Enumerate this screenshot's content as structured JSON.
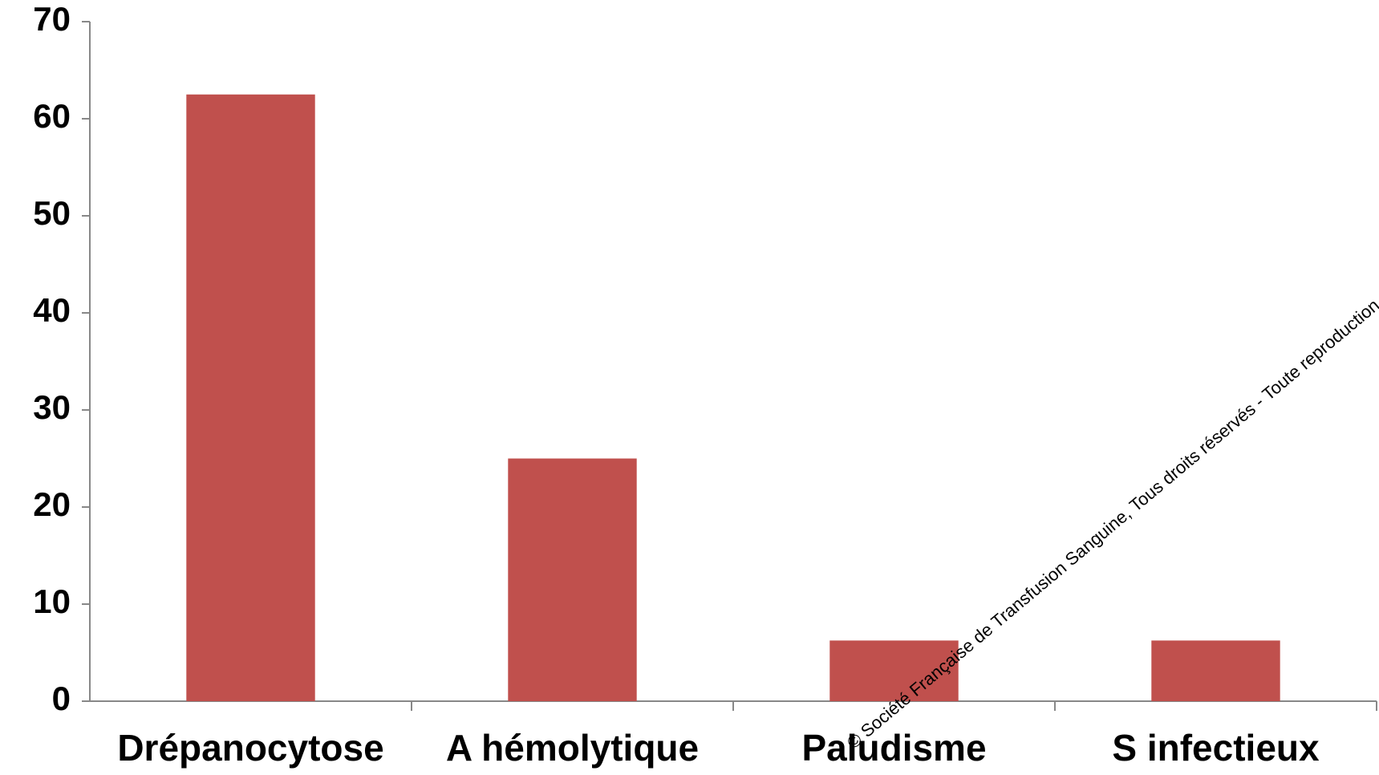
{
  "chart_data": {
    "type": "bar",
    "categories": [
      "Drépanocytose",
      "A hémolytique",
      "Paludisme",
      "S infectieux"
    ],
    "values": [
      62.5,
      25,
      6.25,
      6.25
    ],
    "color": "#c0504d",
    "ylim": [
      0,
      70
    ],
    "yticks": [
      0,
      10,
      20,
      30,
      40,
      50,
      60,
      70
    ],
    "grid": false,
    "annotation": "© Société Française de Transfusion Sanguine, Tous droits réservés - Toute reproduction même pa"
  }
}
